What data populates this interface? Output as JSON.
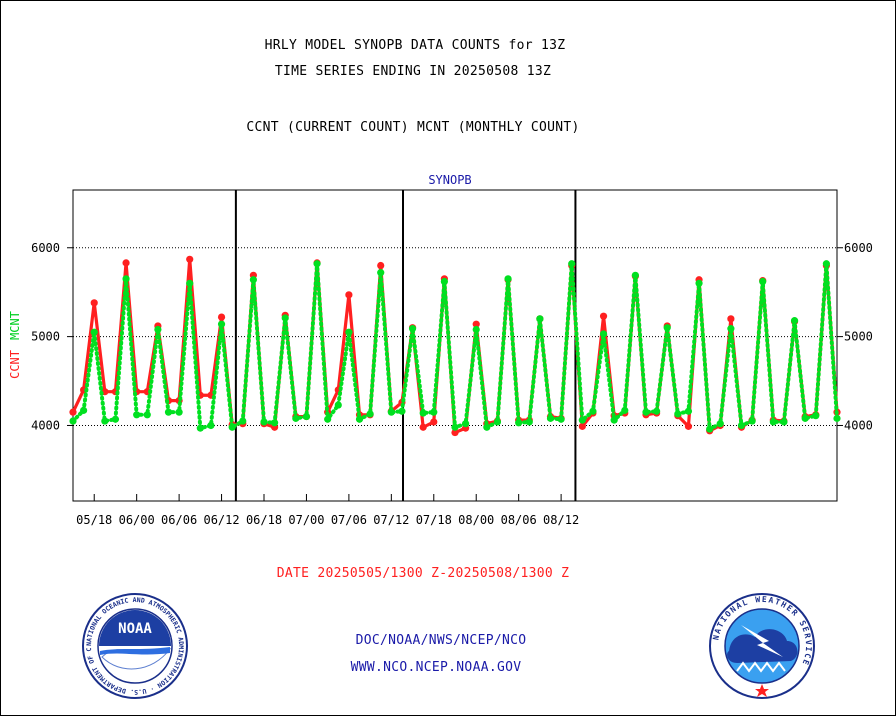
{
  "header": {
    "title1": "HRLY MODEL SYNOPB DATA COUNTS for 13Z",
    "title2": "TIME SERIES ENDING IN 20250508 13Z",
    "title3": "CCNT (CURRENT COUNT) MCNT (MONTHLY COUNT)"
  },
  "footer": {
    "date_range": "DATE 20250505/1300 Z-20250508/1300 Z",
    "org": "DOC/NOAA/NWS/NCEP/NCO",
    "url": "WWW.NCO.NCEP.NOAA.GOV"
  },
  "logos": {
    "noaa_text": "NOAA",
    "nws_ring_text": "NATIONAL WEATHER SERVICE",
    "noaa_ring_text": "NATIONAL OCEANIC AND ATMOSPHERIC ADMINISTRATION · U.S. DEPARTMENT OF COMMERCE"
  },
  "colors": {
    "ccnt": "#ff2020",
    "mcnt": "#00e020",
    "text_blue": "#1a1aa8",
    "text_red": "#ff2020"
  },
  "chart_data": {
    "type": "line",
    "title": "SYNOPB",
    "ylabel_ccnt": "CCNT",
    "ylabel_mcnt": "MCNT",
    "ylim": [
      3150,
      6650
    ],
    "x_range": [
      0,
      72
    ],
    "yticks": [
      4000,
      5000,
      6000
    ],
    "xticks": [
      {
        "x": 2,
        "label": "05/18"
      },
      {
        "x": 6,
        "label": "06/00"
      },
      {
        "x": 10,
        "label": "06/06"
      },
      {
        "x": 14,
        "label": "06/12"
      },
      {
        "x": 18,
        "label": "06/18"
      },
      {
        "x": 22,
        "label": "07/00"
      },
      {
        "x": 26,
        "label": "07/06"
      },
      {
        "x": 30,
        "label": "07/12"
      },
      {
        "x": 34,
        "label": "07/18"
      },
      {
        "x": 38,
        "label": "08/00"
      },
      {
        "x": 42,
        "label": "08/06"
      },
      {
        "x": 46,
        "label": "08/12"
      }
    ],
    "vlines_x": [
      15.35,
      31.1,
      47.35
    ],
    "grid_y": true,
    "series": [
      {
        "name": "CCNT",
        "values": [
          4150,
          4400,
          5380,
          4380,
          4380,
          5830,
          4380,
          4380,
          5120,
          4280,
          4280,
          5870,
          4340,
          4340,
          5220,
          4010,
          4020,
          5690,
          4020,
          3980,
          5240,
          4100,
          4100,
          5830,
          4150,
          4400,
          5470,
          4120,
          4120,
          5800,
          4160,
          4260,
          5100,
          3980,
          4040,
          5650,
          3920,
          3970,
          5140,
          4020,
          4050,
          5640,
          4060,
          4060,
          5200,
          4100,
          4080,
          5800,
          3990,
          4140,
          5230,
          4110,
          4140,
          5680,
          4120,
          4140,
          5120,
          4110,
          3990,
          5640,
          3940,
          4000,
          5200,
          3980,
          4060,
          5630,
          4060,
          4050,
          5170,
          4100,
          4120,
          5800,
          4150
        ]
      },
      {
        "name": "MCNT",
        "values": [
          4050,
          4170,
          5050,
          4050,
          4070,
          5650,
          4120,
          4120,
          5080,
          4150,
          4150,
          5600,
          3970,
          4000,
          5140,
          3980,
          4050,
          5640,
          4040,
          4030,
          5210,
          4080,
          4100,
          5820,
          4070,
          4230,
          5050,
          4070,
          4130,
          5720,
          4150,
          4160,
          5090,
          4140,
          4150,
          5620,
          3980,
          4020,
          5080,
          3980,
          4040,
          5650,
          4030,
          4040,
          5200,
          4080,
          4070,
          5820,
          4060,
          4160,
          5030,
          4060,
          4170,
          5690,
          4150,
          4160,
          5100,
          4130,
          4160,
          5600,
          3960,
          4020,
          5090,
          4000,
          4050,
          5620,
          4040,
          4040,
          5180,
          4080,
          4110,
          5820,
          4080
        ]
      }
    ]
  }
}
